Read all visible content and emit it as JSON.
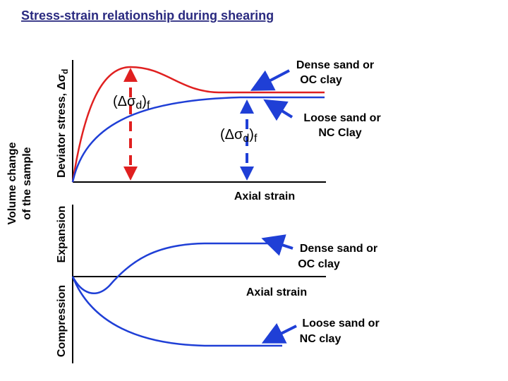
{
  "title": "Stress-strain relationship during shearing",
  "top_plot": {
    "y_axis_label": {
      "text": "Deviator stress, Δσ",
      "subscript": "d"
    },
    "x_axis_label": "Axial strain",
    "peak_label": {
      "open": "(Δσ",
      "sub": "d",
      "close": ")",
      "sub2": "f"
    },
    "ultimate_label": {
      "open": "(Δσ",
      "sub": "d",
      "close": ")",
      "sub2": "f"
    },
    "dense_label": [
      "Dense sand or",
      "OC clay"
    ],
    "loose_label": [
      "Loose sand or",
      "NC Clay"
    ]
  },
  "bottom_plot": {
    "y_axis_label": [
      "Volume change",
      "of the sample"
    ],
    "expansion_label": "Expansion",
    "compression_label": "Compression",
    "x_axis_label": "Axial strain",
    "dense_label": [
      "Dense sand or",
      "OC clay"
    ],
    "loose_label": [
      "Loose sand or",
      "NC clay"
    ]
  }
}
